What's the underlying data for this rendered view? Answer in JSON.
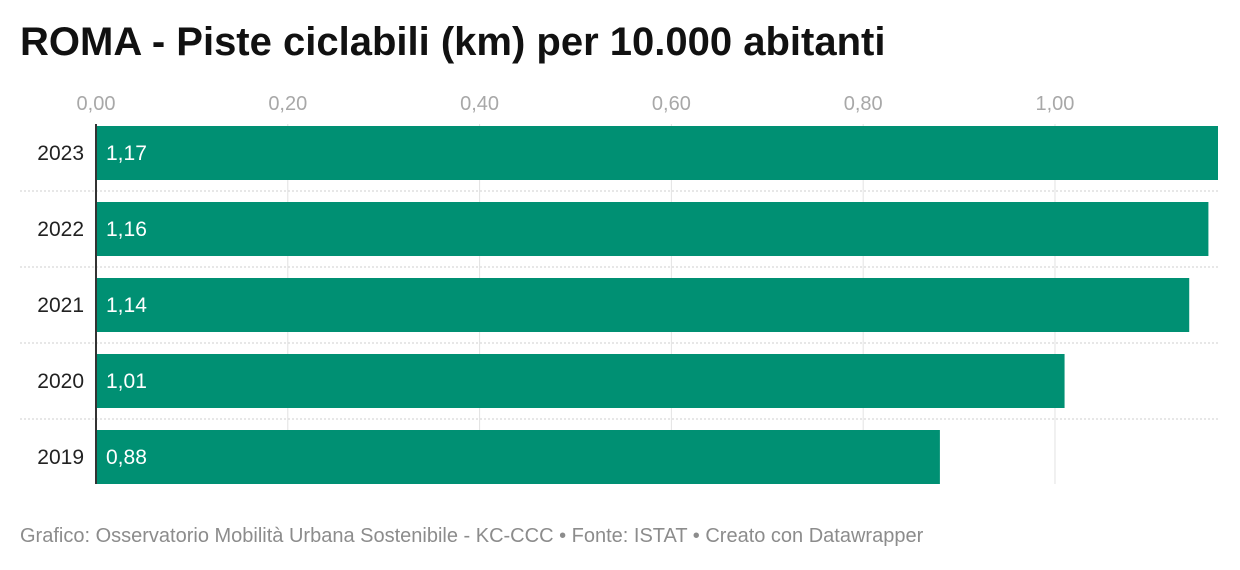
{
  "chart_data": {
    "type": "bar",
    "orientation": "horizontal",
    "title": "ROMA - Piste ciclabili (km) per 10.000 abitanti",
    "categories": [
      "2023",
      "2022",
      "2021",
      "2020",
      "2019"
    ],
    "values": [
      1.17,
      1.16,
      1.14,
      1.01,
      0.88
    ],
    "value_labels": [
      "1,17",
      "1,16",
      "1,14",
      "1,01",
      "0,88"
    ],
    "x_ticks": [
      0,
      0.2,
      0.4,
      0.6,
      0.8,
      1.0
    ],
    "x_tick_labels": [
      "0,00",
      "0,20",
      "0,40",
      "0,60",
      "0,80",
      "1,00"
    ],
    "xlim": [
      0,
      1.17
    ],
    "xlabel": "",
    "ylabel": "",
    "grid": true,
    "bar_color": "#009073"
  },
  "footer": {
    "text": "Grafico: Osservatorio Mobilità Urbana Sostenibile - KC-CCC • Fonte: ISTAT • Creato con Datawrapper"
  }
}
